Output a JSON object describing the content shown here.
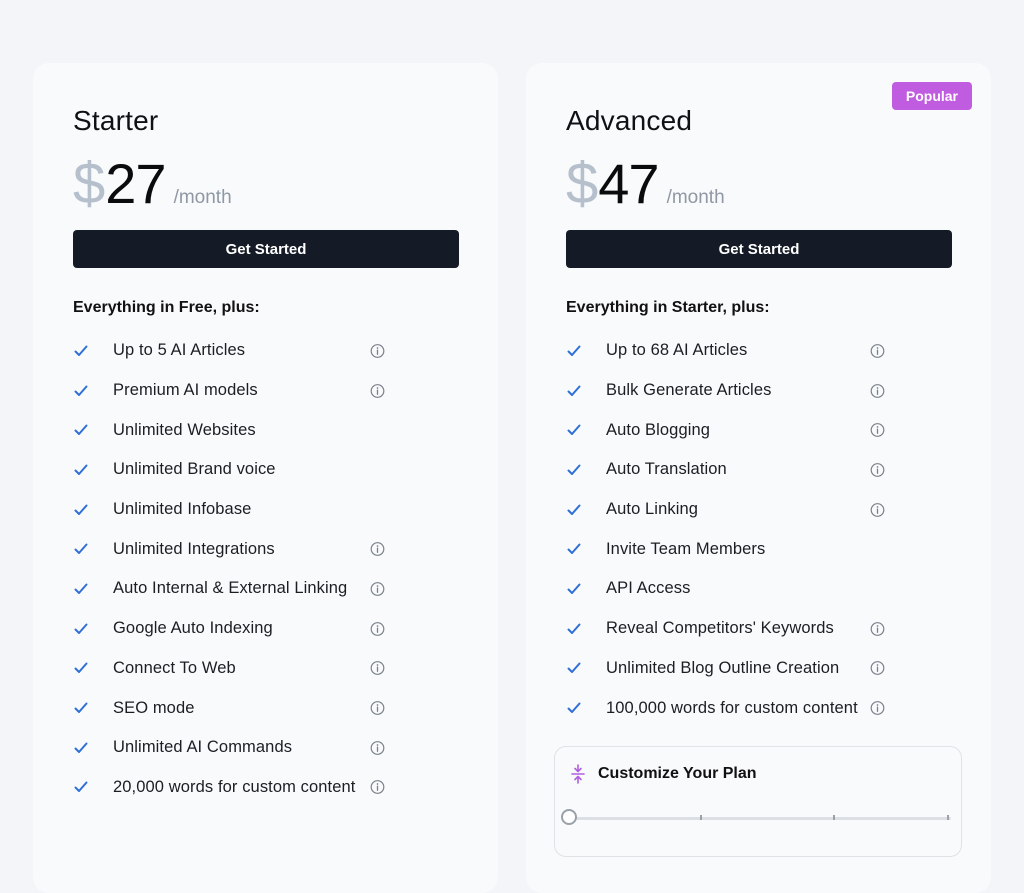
{
  "plans": [
    {
      "name": "Starter",
      "currency": "$",
      "amount": "27",
      "period": "/month",
      "cta_label": "Get Started",
      "features_heading": "Everything in Free, plus:",
      "features": [
        {
          "label": "Up to 5 AI Articles",
          "info": true
        },
        {
          "label": "Premium AI models",
          "info": true
        },
        {
          "label": "Unlimited Websites",
          "info": false
        },
        {
          "label": "Unlimited Brand voice",
          "info": false
        },
        {
          "label": "Unlimited Infobase",
          "info": false
        },
        {
          "label": "Unlimited Integrations",
          "info": true
        },
        {
          "label": "Auto Internal & External Linking",
          "info": true
        },
        {
          "label": "Google Auto Indexing",
          "info": true
        },
        {
          "label": "Connect To Web",
          "info": true
        },
        {
          "label": "SEO mode",
          "info": true
        },
        {
          "label": "Unlimited AI Commands",
          "info": true
        },
        {
          "label": "20,000 words for custom content",
          "info": true
        }
      ]
    },
    {
      "name": "Advanced",
      "badge": "Popular",
      "currency": "$",
      "amount": "47",
      "period": "/month",
      "cta_label": "Get Started",
      "features_heading": "Everything in Starter, plus:",
      "features": [
        {
          "label": "Up to 68 AI Articles",
          "info": true
        },
        {
          "label": "Bulk Generate Articles",
          "info": true
        },
        {
          "label": "Auto Blogging",
          "info": true
        },
        {
          "label": "Auto Translation",
          "info": true
        },
        {
          "label": "Auto Linking",
          "info": true
        },
        {
          "label": "Invite Team Members",
          "info": false
        },
        {
          "label": "API Access",
          "info": false
        },
        {
          "label": "Reveal Competitors' Keywords",
          "info": true
        },
        {
          "label": "Unlimited Blog Outline Creation",
          "info": true
        },
        {
          "label": "100,000 words for custom content",
          "info": true
        }
      ],
      "customize": {
        "title": "Customize Your Plan",
        "slider_value_fraction": 0,
        "slider_tick_count": 2
      }
    }
  ],
  "icons": {
    "check": "check-icon",
    "info": "info-icon",
    "customize": "compress-vertical-icon"
  },
  "colors": {
    "background": "#f3f5f8",
    "card": "#f8fafc",
    "button": "#141a26",
    "check": "#2f6fd6",
    "badge": "#c05ce0",
    "customize_icon": "#b15fe0",
    "currency": "#b6c0cc"
  }
}
